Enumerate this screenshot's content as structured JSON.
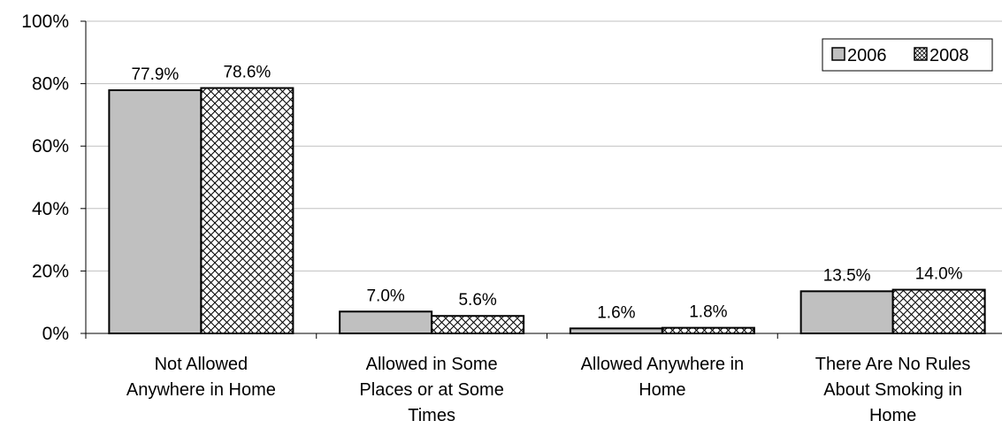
{
  "chart_data": {
    "type": "bar",
    "categories": [
      [
        "Not Allowed",
        "Anywhere in Home"
      ],
      [
        "Allowed in Some",
        "Places or at Some",
        "Times"
      ],
      [
        "Allowed Anywhere in",
        "Home"
      ],
      [
        "There Are No Rules",
        "About Smoking in",
        "Home"
      ]
    ],
    "series": [
      {
        "name": "2006",
        "values": [
          77.9,
          7.0,
          1.6,
          13.5
        ],
        "labels": [
          "77.9%",
          "7.0%",
          "1.6%",
          "13.5%"
        ],
        "fill": "solid",
        "color": "#c0c0c0"
      },
      {
        "name": "2008",
        "values": [
          78.6,
          5.6,
          1.8,
          14.0
        ],
        "labels": [
          "78.6%",
          "5.6%",
          "1.8%",
          "14.0%"
        ],
        "fill": "crosshatch",
        "color": "#ffffff"
      }
    ],
    "ylim": [
      0,
      100
    ],
    "yticks": [
      0,
      20,
      40,
      60,
      80,
      100
    ],
    "ytick_labels": [
      "0%",
      "20%",
      "40%",
      "60%",
      "80%",
      "100%"
    ],
    "title": "",
    "xlabel": "",
    "ylabel": "",
    "grid": true,
    "gridline_color": "#c0c0c0",
    "legend": {
      "position": "top-right",
      "entries": [
        "2006",
        "2008"
      ]
    }
  }
}
